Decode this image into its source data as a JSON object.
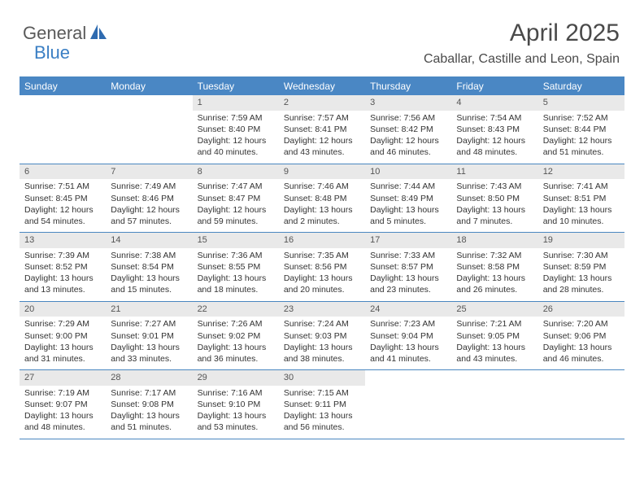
{
  "logo": {
    "text1": "General",
    "text2": "Blue"
  },
  "header": {
    "month_title": "April 2025",
    "location": "Caballar, Castille and Leon, Spain"
  },
  "colors": {
    "header_bg": "#4a87c4",
    "header_border": "#4a87c0",
    "daynum_bg": "#e9e9e9",
    "text": "#333333",
    "logo_gray": "#5a5a5a",
    "logo_blue": "#3b7fc4"
  },
  "day_names": [
    "Sunday",
    "Monday",
    "Tuesday",
    "Wednesday",
    "Thursday",
    "Friday",
    "Saturday"
  ],
  "weeks": [
    [
      {
        "n": "",
        "empty": true
      },
      {
        "n": "",
        "empty": true
      },
      {
        "n": "1",
        "sunrise": "Sunrise: 7:59 AM",
        "sunset": "Sunset: 8:40 PM",
        "day1": "Daylight: 12 hours",
        "day2": "and 40 minutes."
      },
      {
        "n": "2",
        "sunrise": "Sunrise: 7:57 AM",
        "sunset": "Sunset: 8:41 PM",
        "day1": "Daylight: 12 hours",
        "day2": "and 43 minutes."
      },
      {
        "n": "3",
        "sunrise": "Sunrise: 7:56 AM",
        "sunset": "Sunset: 8:42 PM",
        "day1": "Daylight: 12 hours",
        "day2": "and 46 minutes."
      },
      {
        "n": "4",
        "sunrise": "Sunrise: 7:54 AM",
        "sunset": "Sunset: 8:43 PM",
        "day1": "Daylight: 12 hours",
        "day2": "and 48 minutes."
      },
      {
        "n": "5",
        "sunrise": "Sunrise: 7:52 AM",
        "sunset": "Sunset: 8:44 PM",
        "day1": "Daylight: 12 hours",
        "day2": "and 51 minutes."
      }
    ],
    [
      {
        "n": "6",
        "sunrise": "Sunrise: 7:51 AM",
        "sunset": "Sunset: 8:45 PM",
        "day1": "Daylight: 12 hours",
        "day2": "and 54 minutes."
      },
      {
        "n": "7",
        "sunrise": "Sunrise: 7:49 AM",
        "sunset": "Sunset: 8:46 PM",
        "day1": "Daylight: 12 hours",
        "day2": "and 57 minutes."
      },
      {
        "n": "8",
        "sunrise": "Sunrise: 7:47 AM",
        "sunset": "Sunset: 8:47 PM",
        "day1": "Daylight: 12 hours",
        "day2": "and 59 minutes."
      },
      {
        "n": "9",
        "sunrise": "Sunrise: 7:46 AM",
        "sunset": "Sunset: 8:48 PM",
        "day1": "Daylight: 13 hours",
        "day2": "and 2 minutes."
      },
      {
        "n": "10",
        "sunrise": "Sunrise: 7:44 AM",
        "sunset": "Sunset: 8:49 PM",
        "day1": "Daylight: 13 hours",
        "day2": "and 5 minutes."
      },
      {
        "n": "11",
        "sunrise": "Sunrise: 7:43 AM",
        "sunset": "Sunset: 8:50 PM",
        "day1": "Daylight: 13 hours",
        "day2": "and 7 minutes."
      },
      {
        "n": "12",
        "sunrise": "Sunrise: 7:41 AM",
        "sunset": "Sunset: 8:51 PM",
        "day1": "Daylight: 13 hours",
        "day2": "and 10 minutes."
      }
    ],
    [
      {
        "n": "13",
        "sunrise": "Sunrise: 7:39 AM",
        "sunset": "Sunset: 8:52 PM",
        "day1": "Daylight: 13 hours",
        "day2": "and 13 minutes."
      },
      {
        "n": "14",
        "sunrise": "Sunrise: 7:38 AM",
        "sunset": "Sunset: 8:54 PM",
        "day1": "Daylight: 13 hours",
        "day2": "and 15 minutes."
      },
      {
        "n": "15",
        "sunrise": "Sunrise: 7:36 AM",
        "sunset": "Sunset: 8:55 PM",
        "day1": "Daylight: 13 hours",
        "day2": "and 18 minutes."
      },
      {
        "n": "16",
        "sunrise": "Sunrise: 7:35 AM",
        "sunset": "Sunset: 8:56 PM",
        "day1": "Daylight: 13 hours",
        "day2": "and 20 minutes."
      },
      {
        "n": "17",
        "sunrise": "Sunrise: 7:33 AM",
        "sunset": "Sunset: 8:57 PM",
        "day1": "Daylight: 13 hours",
        "day2": "and 23 minutes."
      },
      {
        "n": "18",
        "sunrise": "Sunrise: 7:32 AM",
        "sunset": "Sunset: 8:58 PM",
        "day1": "Daylight: 13 hours",
        "day2": "and 26 minutes."
      },
      {
        "n": "19",
        "sunrise": "Sunrise: 7:30 AM",
        "sunset": "Sunset: 8:59 PM",
        "day1": "Daylight: 13 hours",
        "day2": "and 28 minutes."
      }
    ],
    [
      {
        "n": "20",
        "sunrise": "Sunrise: 7:29 AM",
        "sunset": "Sunset: 9:00 PM",
        "day1": "Daylight: 13 hours",
        "day2": "and 31 minutes."
      },
      {
        "n": "21",
        "sunrise": "Sunrise: 7:27 AM",
        "sunset": "Sunset: 9:01 PM",
        "day1": "Daylight: 13 hours",
        "day2": "and 33 minutes."
      },
      {
        "n": "22",
        "sunrise": "Sunrise: 7:26 AM",
        "sunset": "Sunset: 9:02 PM",
        "day1": "Daylight: 13 hours",
        "day2": "and 36 minutes."
      },
      {
        "n": "23",
        "sunrise": "Sunrise: 7:24 AM",
        "sunset": "Sunset: 9:03 PM",
        "day1": "Daylight: 13 hours",
        "day2": "and 38 minutes."
      },
      {
        "n": "24",
        "sunrise": "Sunrise: 7:23 AM",
        "sunset": "Sunset: 9:04 PM",
        "day1": "Daylight: 13 hours",
        "day2": "and 41 minutes."
      },
      {
        "n": "25",
        "sunrise": "Sunrise: 7:21 AM",
        "sunset": "Sunset: 9:05 PM",
        "day1": "Daylight: 13 hours",
        "day2": "and 43 minutes."
      },
      {
        "n": "26",
        "sunrise": "Sunrise: 7:20 AM",
        "sunset": "Sunset: 9:06 PM",
        "day1": "Daylight: 13 hours",
        "day2": "and 46 minutes."
      }
    ],
    [
      {
        "n": "27",
        "sunrise": "Sunrise: 7:19 AM",
        "sunset": "Sunset: 9:07 PM",
        "day1": "Daylight: 13 hours",
        "day2": "and 48 minutes."
      },
      {
        "n": "28",
        "sunrise": "Sunrise: 7:17 AM",
        "sunset": "Sunset: 9:08 PM",
        "day1": "Daylight: 13 hours",
        "day2": "and 51 minutes."
      },
      {
        "n": "29",
        "sunrise": "Sunrise: 7:16 AM",
        "sunset": "Sunset: 9:10 PM",
        "day1": "Daylight: 13 hours",
        "day2": "and 53 minutes."
      },
      {
        "n": "30",
        "sunrise": "Sunrise: 7:15 AM",
        "sunset": "Sunset: 9:11 PM",
        "day1": "Daylight: 13 hours",
        "day2": "and 56 minutes."
      },
      {
        "n": "",
        "empty": true
      },
      {
        "n": "",
        "empty": true
      },
      {
        "n": "",
        "empty": true
      }
    ]
  ]
}
